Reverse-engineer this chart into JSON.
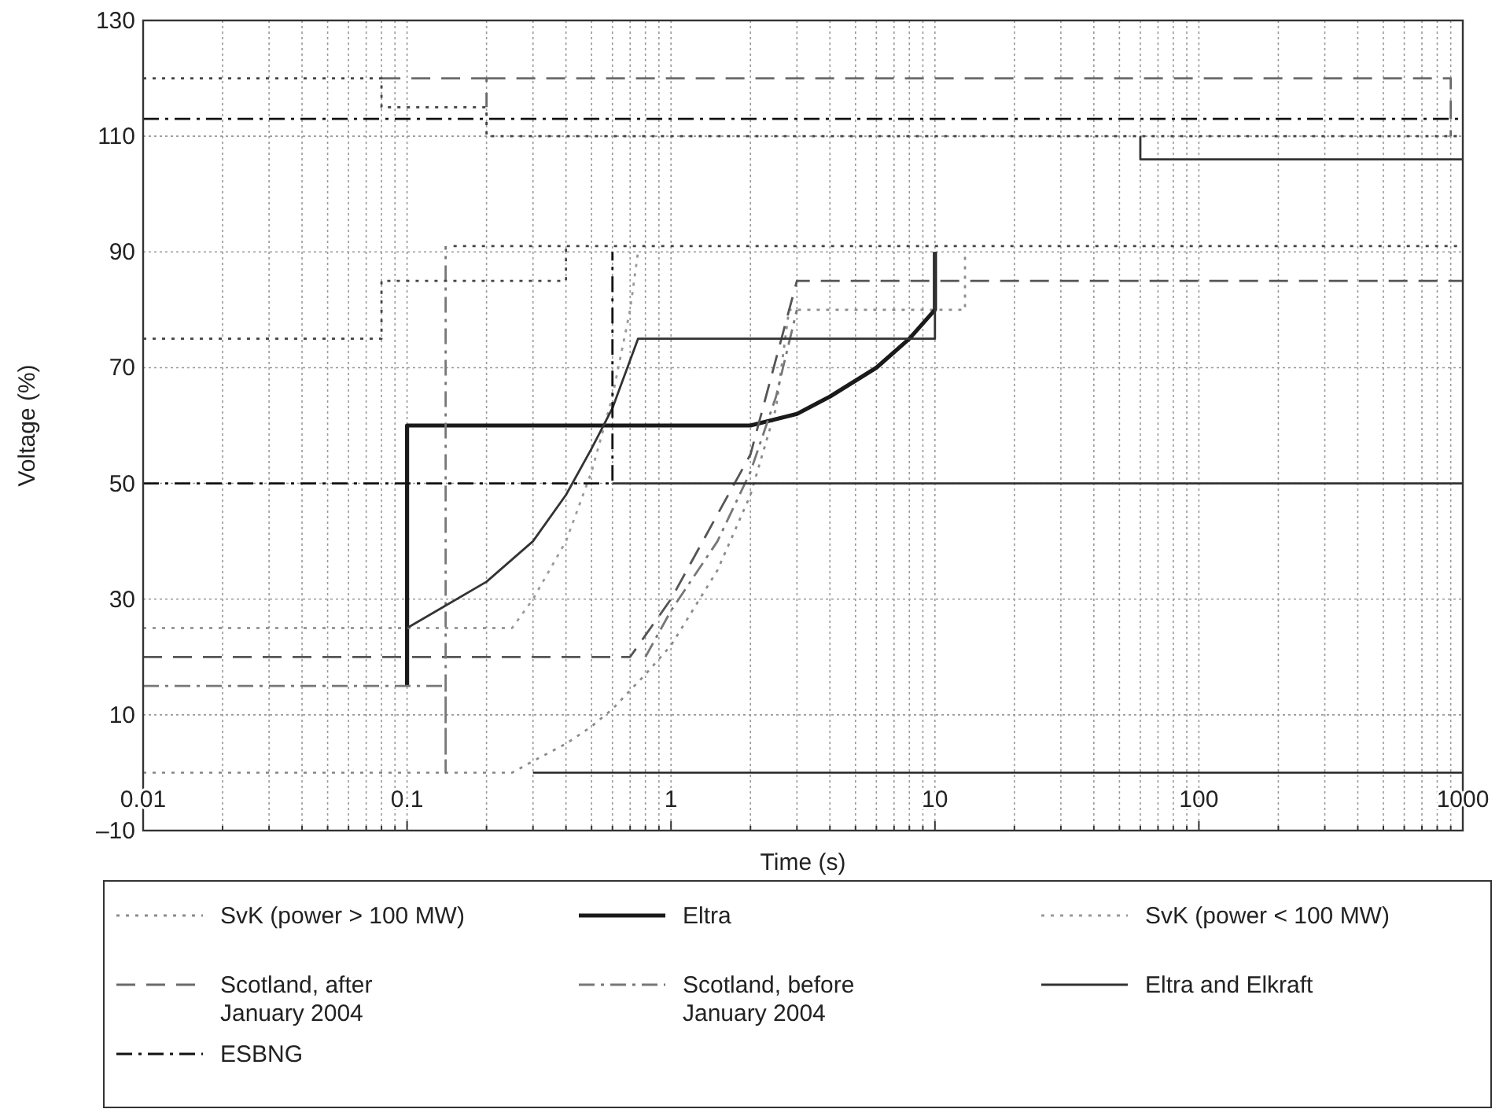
{
  "chart_data": {
    "type": "line",
    "xlabel": "Time (s)",
    "ylabel": "Voltage (%)",
    "log": "x",
    "grid": true,
    "legend": "bottom",
    "xlim": [
      0.01,
      1000
    ],
    "ylim": [
      -10,
      130
    ],
    "xticks": [
      0.01,
      {
        "value": 0.02,
        "label": null
      },
      {
        "value": 0.03,
        "label": null
      },
      {
        "value": 0.04,
        "label": null
      },
      {
        "value": 0.05,
        "label": null
      },
      {
        "value": 0.06,
        "label": null
      },
      {
        "value": 0.07,
        "label": null
      },
      {
        "value": 0.08,
        "label": null
      },
      {
        "value": 0.09,
        "label": null
      },
      0.1,
      {
        "value": 0.2,
        "label": null
      },
      {
        "value": 0.3,
        "label": null
      },
      {
        "value": 0.4,
        "label": null
      },
      {
        "value": 0.5,
        "label": null
      },
      {
        "value": 0.6,
        "label": null
      },
      {
        "value": 0.7,
        "label": null
      },
      {
        "value": 0.8,
        "label": null
      },
      {
        "value": 0.9,
        "label": null
      },
      1,
      {
        "value": 2,
        "label": null
      },
      {
        "value": 3,
        "label": null
      },
      {
        "value": 4,
        "label": null
      },
      {
        "value": 5,
        "label": null
      },
      {
        "value": 6,
        "label": null
      },
      {
        "value": 7,
        "label": null
      },
      {
        "value": 8,
        "label": null
      },
      {
        "value": 9,
        "label": null
      },
      10,
      {
        "value": 20,
        "label": null
      },
      {
        "value": 30,
        "label": null
      },
      {
        "value": 40,
        "label": null
      },
      {
        "value": 50,
        "label": null
      },
      {
        "value": 60,
        "label": null
      },
      {
        "value": 70,
        "label": null
      },
      {
        "value": 80,
        "label": null
      },
      {
        "value": 90,
        "label": null
      },
      100,
      {
        "value": 200,
        "label": null
      },
      {
        "value": 300,
        "label": null
      },
      {
        "value": 400,
        "label": null
      },
      {
        "value": 500,
        "label": null
      },
      {
        "value": 600,
        "label": null
      },
      {
        "value": 700,
        "label": null
      },
      {
        "value": 800,
        "label": null
      },
      {
        "value": 900,
        "label": null
      },
      1000
    ],
    "yticks": [
      {
        "value": 130,
        "label": "130"
      },
      {
        "value": 110,
        "label": "110"
      },
      {
        "value": 90,
        "label": "90"
      },
      {
        "value": 70,
        "label": "70"
      },
      {
        "value": 50,
        "label": "50"
      },
      {
        "value": 30,
        "label": "30"
      },
      {
        "value": 10,
        "label": "10"
      },
      {
        "value": -10,
        "label": "–10"
      }
    ],
    "series": [
      {
        "name": "SvK (power > 100 MW)",
        "color": "#8c8c8c",
        "line_style": "dotted",
        "x": [
          0.01,
          0.25,
          0.3,
          0.4,
          0.5,
          0.6,
          0.8,
          1,
          1.5,
          2,
          2.5,
          2.8,
          13,
          13
        ],
        "values": [
          0,
          0,
          2,
          5,
          8,
          11,
          17,
          22,
          35,
          48,
          63,
          80,
          80,
          90
        ]
      },
      {
        "name": "Eltra",
        "color": "#1a1a1a",
        "line_style": "solid",
        "x": [
          0.1,
          0.1,
          2,
          3,
          4,
          6,
          8,
          10,
          10
        ],
        "values": [
          15,
          60,
          60,
          62,
          65,
          70,
          75,
          80,
          90
        ]
      },
      {
        "name": "SvK (power < 100 MW)",
        "color": "#9a9a9a",
        "line_style": "dotted",
        "x": [
          0.01,
          0.25,
          0.3,
          0.4,
          0.5,
          0.6,
          0.7,
          0.75
        ],
        "values": [
          25,
          25,
          30,
          40,
          52,
          65,
          80,
          90
        ]
      },
      {
        "color": "#555555",
        "line_style": "dashed",
        "x": [
          0.01,
          0.7,
          1,
          2,
          3,
          1000
        ],
        "values": [
          20,
          20,
          30,
          55,
          85,
          85
        ]
      },
      {
        "name": "Scotland, after January 2004",
        "color": "#6a6a6a",
        "line_style": "dashed",
        "x": [
          0.08,
          0.2,
          0.2,
          null,
          0.2,
          900,
          900
        ],
        "values": [
          120,
          120,
          115,
          null,
          120,
          120,
          110
        ]
      },
      {
        "name": "Scotland, before January 2004",
        "color": "#777777",
        "line_style": "dashdot",
        "x": [
          0.01,
          0.14,
          0.14,
          0.14,
          null,
          0.8,
          1,
          1.5,
          2,
          2.5,
          3
        ],
        "values": [
          15,
          15,
          0,
          91,
          null,
          20,
          28,
          40,
          52,
          65,
          80
        ]
      },
      {
        "name": "Eltra and Elkraft",
        "color": "#333333",
        "line_style": "solid",
        "x": [
          0.1,
          0.2,
          0.3,
          0.4,
          0.5,
          0.6,
          0.75,
          10,
          10,
          null,
          0.3,
          1000,
          null,
          0.6,
          1000,
          null,
          60,
          60,
          1000
        ],
        "values": [
          25,
          33,
          40,
          48,
          56,
          63,
          75,
          75,
          90,
          null,
          0,
          0,
          null,
          50,
          50,
          null,
          110,
          106,
          106
        ]
      },
      {
        "name": "ESBNG",
        "color": "#111111",
        "line_style": "dashdot",
        "x": [
          0.01,
          0.6,
          0.6,
          null,
          0.01,
          1000
        ],
        "values": [
          50,
          50,
          90,
          null,
          113,
          113
        ]
      },
      {
        "color": "#444444",
        "line_style": "dotted",
        "x": [
          0.01,
          0.08,
          0.08,
          0.4,
          0.4,
          null,
          0.15,
          1000,
          null,
          0.01,
          0.08,
          0.08,
          0.2,
          0.2,
          1000
        ],
        "values": [
          75,
          75,
          85,
          85,
          91,
          null,
          91,
          91,
          null,
          120,
          120,
          115,
          115,
          110,
          110
        ]
      }
    ]
  }
}
